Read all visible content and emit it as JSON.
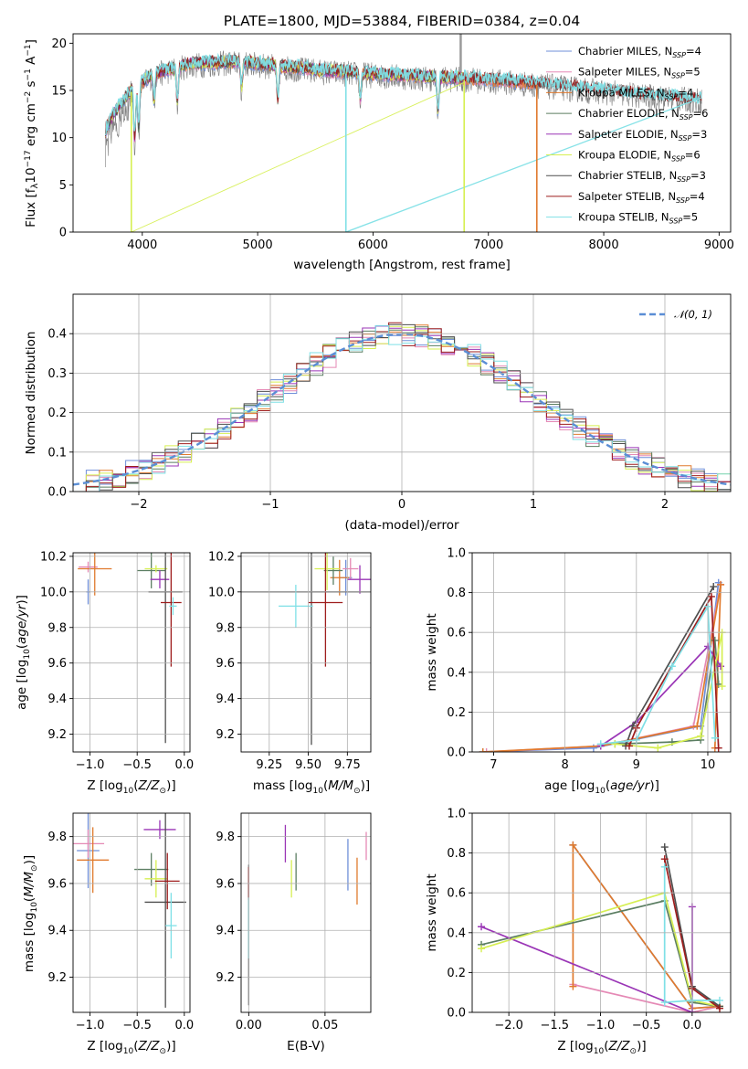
{
  "colors": {
    "chabrier_miles": "#6f8fd9",
    "salpeter_miles": "#e589b5",
    "kroupa_miles": "#e07a2d",
    "chabrier_elodie": "#5b7e62",
    "salpeter_elodie": "#9a35b6",
    "kroupa_elodie": "#d6ef52",
    "chabrier_stelib": "#4e4e4e",
    "salpeter_stelib": "#9e1d1d",
    "kroupa_stelib": "#7fe0e6",
    "gaussian": "#5b8ed5"
  },
  "chart_data": [
    {
      "id": "spectrum",
      "type": "line",
      "title": "PLATE=1800, MJD=53884, FIBERID=0384, z=0.04",
      "xlabel": "wavelength [Angstrom, rest frame]",
      "ylabel": "Flux [f_λ 10^-17 erg cm^-2 s^-1 A^-1]",
      "xlim": [
        3400,
        9100
      ],
      "ylim": [
        0,
        21
      ],
      "xticks": [
        "4000",
        "5000",
        "6000",
        "7000",
        "8000",
        "9000"
      ],
      "yticks": [
        "0",
        "5",
        "10",
        "15",
        "20"
      ],
      "grid": false,
      "legend_position": "top-right",
      "legend": [
        {
          "label": "Chabrier MILES, N",
          "sub": "SSP",
          "val": "=4",
          "color": "chabrier_miles"
        },
        {
          "label": "Salpeter MILES, N",
          "sub": "SSP",
          "val": "=5",
          "color": "salpeter_miles"
        },
        {
          "label": "Kroupa MILES, N",
          "sub": "SSP",
          "val": "=4",
          "color": "kroupa_miles"
        },
        {
          "label": "Chabrier ELODIE, N",
          "sub": "SSP",
          "val": "=6",
          "color": "chabrier_elodie"
        },
        {
          "label": "Salpeter ELODIE, N",
          "sub": "SSP",
          "val": "=3",
          "color": "salpeter_elodie"
        },
        {
          "label": "Kroupa ELODIE, N",
          "sub": "SSP",
          "val": "=6",
          "color": "kroupa_elodie"
        },
        {
          "label": "Chabrier STELIB, N",
          "sub": "SSP",
          "val": "=3",
          "color": "chabrier_stelib"
        },
        {
          "label": "Salpeter STELIB, N",
          "sub": "SSP",
          "val": "=4",
          "color": "salpeter_stelib"
        },
        {
          "label": "Kroupa STELIB, N",
          "sub": "SSP",
          "val": "=5",
          "color": "kroupa_stelib"
        }
      ],
      "continuum": [
        [
          3680,
          10.5
        ],
        [
          3760,
          12.5
        ],
        [
          3900,
          14.8
        ],
        [
          4100,
          16.6
        ],
        [
          4400,
          17.6
        ],
        [
          4800,
          17.9
        ],
        [
          5200,
          17.4
        ],
        [
          5600,
          16.9
        ],
        [
          6000,
          16.6
        ],
        [
          6400,
          16.3
        ],
        [
          6800,
          16.1
        ],
        [
          7200,
          15.8
        ],
        [
          7600,
          15.3
        ],
        [
          8000,
          14.8
        ],
        [
          8400,
          14.3
        ],
        [
          8800,
          13.9
        ]
      ],
      "fits_range": {
        "chabrier_miles": [
          3680,
          7400
        ],
        "salpeter_miles": [
          3680,
          7400
        ],
        "kroupa_miles": [
          3680,
          7420
        ],
        "chabrier_elodie": [
          3680,
          6790
        ],
        "salpeter_elodie": [
          3680,
          6790
        ],
        "kroupa_elodie": [
          3680,
          6790
        ],
        "chabrier_stelib": [
          3680,
          8850
        ],
        "salpeter_stelib": [
          3680,
          8850
        ],
        "kroupa_stelib": [
          3680,
          8850
        ]
      },
      "absorption_features": [
        [
          3934,
          6
        ],
        [
          3969,
          5
        ],
        [
          4102,
          3
        ],
        [
          4304,
          4
        ],
        [
          4861,
          3
        ],
        [
          5175,
          4
        ],
        [
          5890,
          3
        ],
        [
          6563,
          4
        ]
      ],
      "edge_drops": [
        [
          3905,
          "kroupa_elodie"
        ],
        [
          5765,
          "kroupa_stelib"
        ],
        [
          6790,
          "kroupa_elodie"
        ],
        [
          7420,
          "kroupa_miles"
        ]
      ],
      "data_spike": [
        6760,
        21
      ]
    },
    {
      "id": "residuals",
      "type": "line",
      "xlabel": "(data-model)/error",
      "ylabel": "Normed distribution",
      "xlim": [
        -2.5,
        2.5
      ],
      "ylim": [
        0,
        0.5
      ],
      "xticks": [
        "−2",
        "−1",
        "0",
        "1",
        "2"
      ],
      "yticks": [
        "0.0",
        "0.1",
        "0.2",
        "0.3",
        "0.4"
      ],
      "grid": true,
      "legend_position": "top-right",
      "legend": [
        {
          "label": "𝒩(0, 1)",
          "color": "gaussian",
          "style": "dashed"
        }
      ],
      "bin_width": 0.1,
      "series_note": "nine step histograms, one per model"
    },
    {
      "id": "age_vs_Z",
      "type": "scatter",
      "xlabel": "Z [log10(Z/Z⊙)]",
      "ylabel": "age [log10(age/yr)]",
      "xlim": [
        -1.18,
        0.06
      ],
      "ylim": [
        9.1,
        10.22
      ],
      "xticks": [
        "−1.0",
        "−0.5",
        "0.0"
      ],
      "yticks": [
        "9.2",
        "9.4",
        "9.6",
        "9.8",
        "10.0",
        "10.2"
      ],
      "grid": true,
      "points": [
        {
          "s": "chabrier_miles",
          "x": -1.02,
          "y": 10.0,
          "xe": 0.02,
          "ye": 0.07
        },
        {
          "s": "salpeter_miles",
          "x": -1.02,
          "y": 10.14,
          "xe": 0.1,
          "ye": 0.03
        },
        {
          "s": "kroupa_miles",
          "x": -0.95,
          "y": 10.13,
          "xe": 0.18,
          "ye": 0.15
        },
        {
          "s": "chabrier_elodie",
          "x": -0.35,
          "y": 10.12,
          "xe": 0.15,
          "ye": 0.1
        },
        {
          "s": "salpeter_elodie",
          "x": -0.26,
          "y": 10.07,
          "xe": 0.1,
          "ye": 0.05
        },
        {
          "s": "kroupa_elodie",
          "x": -0.3,
          "y": 10.13,
          "xe": 0.12,
          "ye": 0.02
        },
        {
          "s": "chabrier_stelib",
          "x": -0.2,
          "y": 10.0,
          "xe": 0.18,
          "ye": 0.85
        },
        {
          "s": "salpeter_stelib",
          "x": -0.14,
          "y": 9.94,
          "xe": 0.11,
          "ye": 0.36
        },
        {
          "s": "kroupa_stelib",
          "x": -0.12,
          "y": 9.92,
          "xe": 0.04,
          "ye": 0.05
        }
      ]
    },
    {
      "id": "age_vs_mass",
      "type": "scatter",
      "xlabel": "mass [log10(M/M⊙)]",
      "xlim": [
        9.07,
        9.9
      ],
      "ylim": [
        9.1,
        10.22
      ],
      "xticks": [
        "9.25",
        "9.50",
        "9.75"
      ],
      "yticks": [
        "9.2",
        "9.4",
        "9.6",
        "9.8",
        "10.0",
        "10.2"
      ],
      "grid": true,
      "points": [
        {
          "s": "chabrier_miles",
          "x": 9.74,
          "y": 10.08,
          "xe": 0.04,
          "ye": 0.1
        },
        {
          "s": "salpeter_miles",
          "x": 9.77,
          "y": 10.13,
          "xe": 0.05,
          "ye": 0.06
        },
        {
          "s": "kroupa_miles",
          "x": 9.7,
          "y": 10.08,
          "xe": 0.06,
          "ye": 0.1
        },
        {
          "s": "chabrier_elodie",
          "x": 9.66,
          "y": 10.12,
          "xe": 0.06,
          "ye": 0.08
        },
        {
          "s": "salpeter_elodie",
          "x": 9.83,
          "y": 10.07,
          "xe": 0.08,
          "ye": 0.08
        },
        {
          "s": "kroupa_elodie",
          "x": 9.62,
          "y": 10.13,
          "xe": 0.08,
          "ye": 0.12
        },
        {
          "s": "chabrier_stelib",
          "x": 9.52,
          "y": 10.0,
          "xe": 0.45,
          "ye": 0.86
        },
        {
          "s": "salpeter_stelib",
          "x": 9.61,
          "y": 9.94,
          "xe": 0.11,
          "ye": 0.36
        },
        {
          "s": "kroupa_stelib",
          "x": 9.42,
          "y": 9.92,
          "xe": 0.11,
          "ye": 0.12
        }
      ]
    },
    {
      "id": "weight_vs_age",
      "type": "line",
      "xlabel": "age [log10(age/yr)]",
      "ylabel": "mass weight",
      "xlim": [
        6.7,
        10.32
      ],
      "ylim": [
        0,
        1
      ],
      "xticks": [
        "7",
        "8",
        "9",
        "10"
      ],
      "yticks": [
        "0.0",
        "0.2",
        "0.4",
        "0.6",
        "0.8",
        "1.0"
      ],
      "grid": true,
      "series": [
        {
          "s": "chabrier_miles",
          "pts": [
            [
              6.85,
              0.0
            ],
            [
              8.4,
              0.02
            ],
            [
              9.9,
              0.13
            ],
            [
              10.15,
              0.85
            ]
          ]
        },
        {
          "s": "salpeter_miles",
          "pts": [
            [
              6.9,
              0.0
            ],
            [
              8.5,
              0.03
            ],
            [
              9.8,
              0.13
            ],
            [
              10.18,
              0.84
            ]
          ]
        },
        {
          "s": "kroupa_miles",
          "pts": [
            [
              6.85,
              0.0
            ],
            [
              8.5,
              0.03
            ],
            [
              9.85,
              0.13
            ],
            [
              10.18,
              0.84
            ],
            [
              10.1,
              0.02
            ]
          ]
        },
        {
          "s": "chabrier_elodie",
          "pts": [
            [
              8.7,
              0.04
            ],
            [
              9.5,
              0.05
            ],
            [
              9.9,
              0.06
            ],
            [
              10.1,
              0.56
            ],
            [
              10.15,
              0.34
            ]
          ]
        },
        {
          "s": "salpeter_elodie",
          "pts": [
            [
              8.5,
              0.03
            ],
            [
              9.0,
              0.15
            ],
            [
              10.0,
              0.53
            ],
            [
              10.18,
              0.43
            ]
          ]
        },
        {
          "s": "kroupa_elodie",
          "pts": [
            [
              8.7,
              0.04
            ],
            [
              9.3,
              0.02
            ],
            [
              9.9,
              0.08
            ],
            [
              10.2,
              0.6
            ],
            [
              10.2,
              0.33
            ]
          ]
        },
        {
          "s": "chabrier_stelib",
          "pts": [
            [
              8.85,
              0.03
            ],
            [
              8.95,
              0.13
            ],
            [
              10.08,
              0.83
            ]
          ]
        },
        {
          "s": "salpeter_stelib",
          "pts": [
            [
              8.9,
              0.03
            ],
            [
              9.0,
              0.12
            ],
            [
              10.05,
              0.78
            ],
            [
              10.15,
              0.02
            ]
          ]
        },
        {
          "s": "kroupa_stelib",
          "pts": [
            [
              8.5,
              0.04
            ],
            [
              9.0,
              0.06
            ],
            [
              9.5,
              0.43
            ],
            [
              10.0,
              0.73
            ],
            [
              10.1,
              0.07
            ]
          ]
        }
      ]
    },
    {
      "id": "mass_vs_Z",
      "type": "scatter",
      "xlabel": "Z [log10(Z/Z⊙)]",
      "ylabel": "mass [log10(M/M⊙)]",
      "xlim": [
        -1.18,
        0.06
      ],
      "ylim": [
        9.05,
        9.9
      ],
      "xticks": [
        "−1.0",
        "−0.5",
        "0.0"
      ],
      "yticks": [
        "9.2",
        "9.4",
        "9.6",
        "9.8"
      ],
      "grid": true,
      "points": [
        {
          "s": "chabrier_miles",
          "x": -1.02,
          "y": 9.74,
          "xe": 0.12,
          "ye": 0.16
        },
        {
          "s": "salpeter_miles",
          "x": -1.02,
          "y": 9.77,
          "xe": 0.17,
          "ye": 0.06
        },
        {
          "s": "kroupa_miles",
          "x": -0.97,
          "y": 9.7,
          "xe": 0.17,
          "ye": 0.14
        },
        {
          "s": "chabrier_elodie",
          "x": -0.35,
          "y": 9.66,
          "xe": 0.18,
          "ye": 0.07
        },
        {
          "s": "salpeter_elodie",
          "x": -0.26,
          "y": 9.83,
          "xe": 0.17,
          "ye": 0.04
        },
        {
          "s": "kroupa_elodie",
          "x": -0.3,
          "y": 9.62,
          "xe": 0.12,
          "ye": 0.08
        },
        {
          "s": "chabrier_stelib",
          "x": -0.2,
          "y": 9.52,
          "xe": 0.22,
          "ye": 0.45
        },
        {
          "s": "salpeter_stelib",
          "x": -0.18,
          "y": 9.61,
          "xe": 0.13,
          "ye": 0.12
        },
        {
          "s": "kroupa_stelib",
          "x": -0.14,
          "y": 9.42,
          "xe": 0.06,
          "ye": 0.14
        }
      ]
    },
    {
      "id": "mass_vs_ebv",
      "type": "scatter",
      "xlabel": "E(B-V)",
      "xlim": [
        -0.005,
        0.08
      ],
      "ylim": [
        9.05,
        9.9
      ],
      "xticks": [
        "0.00",
        "0.05"
      ],
      "yticks": [
        "9.2",
        "9.4",
        "9.6",
        "9.8"
      ],
      "grid": true,
      "points": [
        {
          "s": "chabrier_miles",
          "x": 0.065,
          "y": 9.68,
          "xe": 0.0,
          "ye": 0.11
        },
        {
          "s": "salpeter_miles",
          "x": 0.077,
          "y": 9.76,
          "xe": 0.0,
          "ye": 0.06
        },
        {
          "s": "kroupa_miles",
          "x": 0.071,
          "y": 9.61,
          "xe": 0.0,
          "ye": 0.1
        },
        {
          "s": "chabrier_elodie",
          "x": 0.031,
          "y": 9.65,
          "xe": 0.0,
          "ye": 0.08
        },
        {
          "s": "salpeter_elodie",
          "x": 0.024,
          "y": 9.77,
          "xe": 0.0,
          "ye": 0.08
        },
        {
          "s": "kroupa_elodie",
          "x": 0.028,
          "y": 9.62,
          "xe": 0.0,
          "ye": 0.08
        },
        {
          "s": "chabrier_stelib",
          "x": 0.0,
          "y": 9.38,
          "xe": 0.0,
          "ye": 0.3
        },
        {
          "s": "salpeter_stelib",
          "x": 0.0,
          "y": 9.6,
          "xe": 0.0,
          "ye": 0.07
        },
        {
          "s": "kroupa_stelib",
          "x": 0.0,
          "y": 9.41,
          "xe": 0.0,
          "ye": 0.13
        }
      ]
    },
    {
      "id": "weight_vs_Z",
      "type": "line",
      "xlabel": "Z [log10(Z/Z⊙)]",
      "ylabel": "mass weight",
      "xlim": [
        -2.4,
        0.42
      ],
      "ylim": [
        0,
        1
      ],
      "xticks": [
        "−2.0",
        "−1.5",
        "−1.0",
        "−0.5",
        "0.0"
      ],
      "yticks": [
        "0.0",
        "0.2",
        "0.4",
        "0.6",
        "0.8",
        "1.0"
      ],
      "grid": true,
      "series": [
        {
          "s": "chabrier_miles",
          "pts": [
            [
              -1.3,
              0.84
            ],
            [
              0.0,
              0.02
            ],
            [
              0.3,
              0.03
            ]
          ]
        },
        {
          "s": "salpeter_miles",
          "pts": [
            [
              -1.3,
              0.14
            ],
            [
              0.0,
              0.0
            ],
            [
              0.3,
              0.03
            ]
          ]
        },
        {
          "s": "kroupa_miles",
          "pts": [
            [
              -1.3,
              0.13
            ],
            [
              -1.3,
              0.84
            ],
            [
              0.0,
              0.02
            ],
            [
              0.3,
              0.03
            ]
          ]
        },
        {
          "s": "chabrier_elodie",
          "pts": [
            [
              -2.3,
              0.34
            ],
            [
              -0.3,
              0.56
            ],
            [
              0.0,
              0.05
            ],
            [
              0.3,
              0.03
            ]
          ]
        },
        {
          "s": "salpeter_elodie",
          "pts": [
            [
              -2.3,
              0.43
            ],
            [
              0.0,
              0.0
            ],
            [
              0.0,
              0.53
            ]
          ]
        },
        {
          "s": "kroupa_elodie",
          "pts": [
            [
              -2.3,
              0.32
            ],
            [
              -0.3,
              0.6
            ],
            [
              0.0,
              0.06
            ],
            [
              0.3,
              0.03
            ]
          ]
        },
        {
          "s": "chabrier_stelib",
          "pts": [
            [
              -0.3,
              0.83
            ],
            [
              0.0,
              0.13
            ],
            [
              0.3,
              0.03
            ]
          ]
        },
        {
          "s": "salpeter_stelib",
          "pts": [
            [
              -0.3,
              0.77
            ],
            [
              0.0,
              0.12
            ],
            [
              0.3,
              0.02
            ]
          ]
        },
        {
          "s": "kroupa_stelib",
          "pts": [
            [
              -0.3,
              0.73
            ],
            [
              -0.3,
              0.05
            ],
            [
              0.0,
              0.06
            ],
            [
              0.3,
              0.06
            ]
          ]
        }
      ]
    }
  ]
}
